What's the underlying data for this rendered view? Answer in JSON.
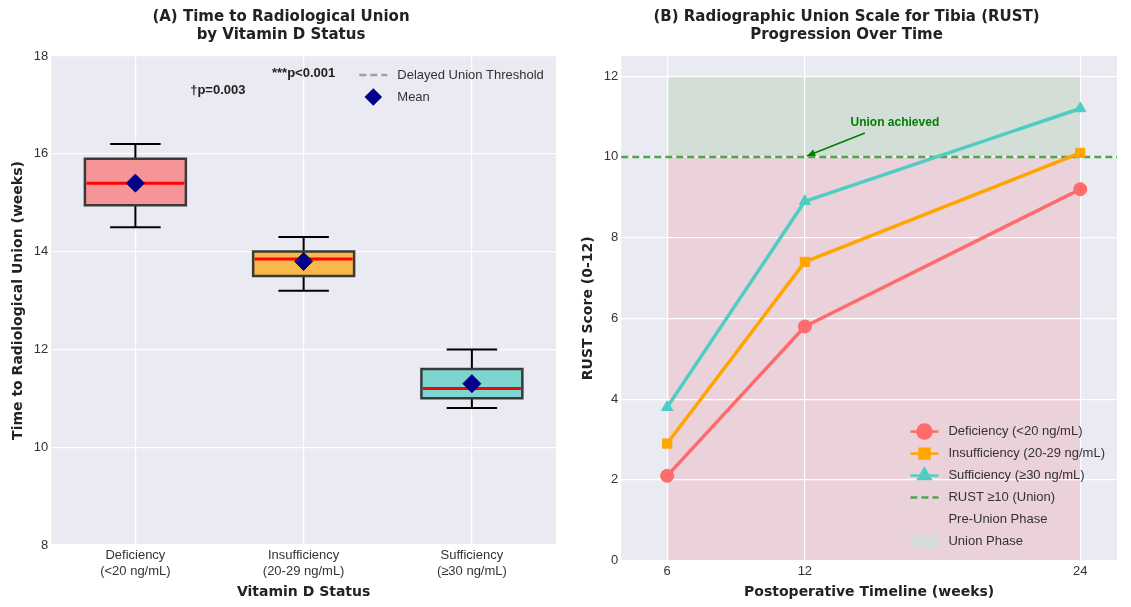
{
  "chart_data": [
    {
      "type": "box",
      "title": "(A) Time to Radiological Union\nby Vitamin D Status",
      "xlabel": "Vitamin D Status",
      "ylabel": "Time to Radiological Union (weeks)",
      "categories": [
        "Deficiency\n(<20 ng/mL)",
        "Insufficiency\n(20-29 ng/mL)",
        "Sufficiency\n(≥30 ng/mL)"
      ],
      "series": [
        {
          "type": "box",
          "colors": [
            "#f59598",
            "#f8b94a",
            "#7dd5d0"
          ],
          "boxes": [
            {
              "low": 14.5,
              "q1": 14.95,
              "median": 15.4,
              "q3": 15.9,
              "high": 16.2
            },
            {
              "low": 13.2,
              "q1": 13.5,
              "median": 13.85,
              "q3": 14.0,
              "high": 14.3
            },
            {
              "low": 10.8,
              "q1": 11.0,
              "median": 11.2,
              "q3": 11.6,
              "high": 12.0
            }
          ]
        },
        {
          "type": "line",
          "name": "Delayed Union Threshold",
          "color": "#a0a0a0",
          "line_style": "dashed",
          "values": [
            null,
            null,
            null
          ]
        },
        {
          "type": "scatter",
          "name": "Mean",
          "color": "#00008b",
          "marker": "diamond",
          "x": [
            "Deficiency\n(<20 ng/mL)",
            "Insufficiency\n(20-29 ng/mL)",
            "Sufficiency\n(≥30 ng/mL)"
          ],
          "values": [
            15.4,
            13.8,
            11.3
          ]
        }
      ],
      "ylim": [
        8,
        18
      ],
      "yticks": [
        8,
        10,
        12,
        14,
        16,
        18
      ],
      "grid": true,
      "legend": "top right",
      "annotations": [
        "†p=0.003",
        "***p<0.001"
      ]
    },
    {
      "type": "line",
      "title": "(B) Radiographic Union Scale for Tibia (RUST)\nProgression Over Time",
      "xlabel": "Postoperative Timeline (weeks)",
      "ylabel": "RUST Score (0-12)",
      "x": [
        6,
        12,
        24
      ],
      "series": [
        {
          "name": "Deficiency (<20 ng/mL)",
          "color": "#ff6b6b",
          "marker": "circle",
          "values": [
            2.1,
            5.8,
            9.2
          ]
        },
        {
          "name": "Insufficiency (20-29 ng/mL)",
          "color": "#ffa500",
          "marker": "square",
          "values": [
            2.9,
            7.4,
            10.1
          ]
        },
        {
          "name": "Sufficiency (≥30 ng/mL)",
          "color": "#4ecdc4",
          "marker": "triangle",
          "values": [
            3.8,
            8.9,
            11.2
          ]
        }
      ],
      "xlim": [
        4,
        25.6
      ],
      "xticks": [
        6,
        12,
        24
      ],
      "ylim": [
        0,
        12.5
      ],
      "yticks": [
        0,
        2,
        4,
        6,
        8,
        10,
        12
      ],
      "ref_lines": [
        {
          "axis": "y",
          "value": 10,
          "label": "RUST ≥10 (Union)",
          "color": "#4ca64c",
          "line_style": "dashed"
        }
      ],
      "bands": [
        {
          "axis": "y",
          "from": 0,
          "to": 10,
          "label": "Pre-Union Phase",
          "color": "#ebd1d9"
        },
        {
          "axis": "y",
          "from": 10,
          "to": 12,
          "label": "Union Phase",
          "color": "#d2ded6"
        }
      ],
      "annotations": [
        {
          "text": "Union achieved",
          "x": 12,
          "y": 10
        }
      ],
      "grid": true,
      "legend": "bottom right"
    }
  ]
}
